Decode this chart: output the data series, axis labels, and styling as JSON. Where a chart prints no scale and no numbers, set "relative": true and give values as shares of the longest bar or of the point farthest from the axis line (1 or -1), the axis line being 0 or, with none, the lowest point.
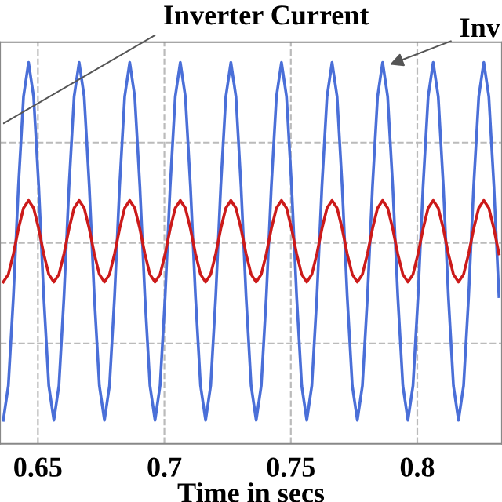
{
  "chart_data": {
    "type": "line",
    "relative": true,
    "xlabel": "Time in secs",
    "xlim": [
      0.635,
      0.8335
    ],
    "xticks": [
      0.65,
      0.7,
      0.75,
      0.8
    ],
    "grid": true,
    "line_style": "solid",
    "x": [
      0.6363,
      0.6383,
      0.6403,
      0.6423,
      0.6443,
      0.6463,
      0.6483,
      0.6503,
      0.6523,
      0.6543,
      0.6563,
      0.6583,
      0.6603,
      0.6623,
      0.6643,
      0.6663,
      0.6683,
      0.6703,
      0.6723,
      0.6743,
      0.6763,
      0.6783,
      0.6803,
      0.6823,
      0.6843,
      0.6863,
      0.6883,
      0.6903,
      0.6923,
      0.6943,
      0.6963,
      0.6983,
      0.7003,
      0.7023,
      0.7043,
      0.7063,
      0.7083,
      0.7103,
      0.7123,
      0.7143,
      0.7163,
      0.7183,
      0.7203,
      0.7223,
      0.7243,
      0.7263,
      0.7283,
      0.7303,
      0.7323,
      0.7343,
      0.7363,
      0.7383,
      0.7403,
      0.7423,
      0.7443,
      0.7463,
      0.7483,
      0.7503,
      0.7523,
      0.7543,
      0.7563,
      0.7583,
      0.7603,
      0.7623,
      0.7643,
      0.7663,
      0.7683,
      0.7703,
      0.7723,
      0.7743,
      0.7763,
      0.7783,
      0.7803,
      0.7823,
      0.7843,
      0.7863,
      0.7883,
      0.7903,
      0.7923,
      0.7943,
      0.7963,
      0.7983,
      0.8003,
      0.8023,
      0.8043,
      0.8063,
      0.8083,
      0.8103,
      0.8123,
      0.8143,
      0.8163,
      0.8183,
      0.8203,
      0.8223,
      0.8243,
      0.8263,
      0.8283,
      0.8303,
      0.8323
    ],
    "series": [
      {
        "color": "#4a6fd8",
        "values": [
          0.062,
          0.152,
          0.386,
          0.676,
          0.91,
          1,
          0.91,
          0.676,
          0.386,
          0.152,
          0.062,
          0.152,
          0.386,
          0.676,
          0.91,
          1,
          0.91,
          0.676,
          0.386,
          0.152,
          0.062,
          0.152,
          0.386,
          0.676,
          0.91,
          1,
          0.91,
          0.676,
          0.386,
          0.152,
          0.062,
          0.152,
          0.386,
          0.676,
          0.91,
          1,
          0.91,
          0.676,
          0.386,
          0.152,
          0.062,
          0.152,
          0.386,
          0.676,
          0.91,
          1,
          0.91,
          0.676,
          0.386,
          0.152,
          0.062,
          0.152,
          0.386,
          0.676,
          0.91,
          1,
          0.91,
          0.676,
          0.386,
          0.152,
          0.062,
          0.152,
          0.386,
          0.676,
          0.91,
          1,
          0.91,
          0.676,
          0.386,
          0.152,
          0.062,
          0.152,
          0.386,
          0.676,
          0.91,
          1,
          0.91,
          0.676,
          0.386,
          0.152,
          0.062,
          0.152,
          0.386,
          0.676,
          0.91,
          1,
          0.91,
          0.676,
          0.386,
          0.152,
          0.062,
          0.152,
          0.386,
          0.676,
          0.91,
          1,
          0.91,
          0.676,
          0.386
        ]
      },
      {
        "color": "#cc1a1a",
        "values": [
          0.424,
          0.444,
          0.498,
          0.564,
          0.618,
          0.638,
          0.618,
          0.564,
          0.498,
          0.444,
          0.424,
          0.444,
          0.498,
          0.564,
          0.618,
          0.638,
          0.618,
          0.564,
          0.498,
          0.444,
          0.424,
          0.444,
          0.498,
          0.564,
          0.618,
          0.638,
          0.618,
          0.564,
          0.498,
          0.444,
          0.424,
          0.444,
          0.498,
          0.564,
          0.618,
          0.638,
          0.618,
          0.564,
          0.498,
          0.444,
          0.424,
          0.444,
          0.498,
          0.564,
          0.618,
          0.638,
          0.618,
          0.564,
          0.498,
          0.444,
          0.424,
          0.444,
          0.498,
          0.564,
          0.618,
          0.638,
          0.618,
          0.564,
          0.498,
          0.444,
          0.424,
          0.444,
          0.498,
          0.564,
          0.618,
          0.638,
          0.618,
          0.564,
          0.498,
          0.444,
          0.424,
          0.444,
          0.498,
          0.564,
          0.618,
          0.638,
          0.618,
          0.564,
          0.498,
          0.444,
          0.424,
          0.444,
          0.498,
          0.564,
          0.618,
          0.638,
          0.618,
          0.564,
          0.498,
          0.444,
          0.424,
          0.444,
          0.498,
          0.564,
          0.618,
          0.638,
          0.618,
          0.564,
          0.498
        ]
      }
    ],
    "annotations": [
      "Inverter Current",
      {
        "text": "Inv",
        "x": 0.7875,
        "y": 0.99
      }
    ]
  }
}
